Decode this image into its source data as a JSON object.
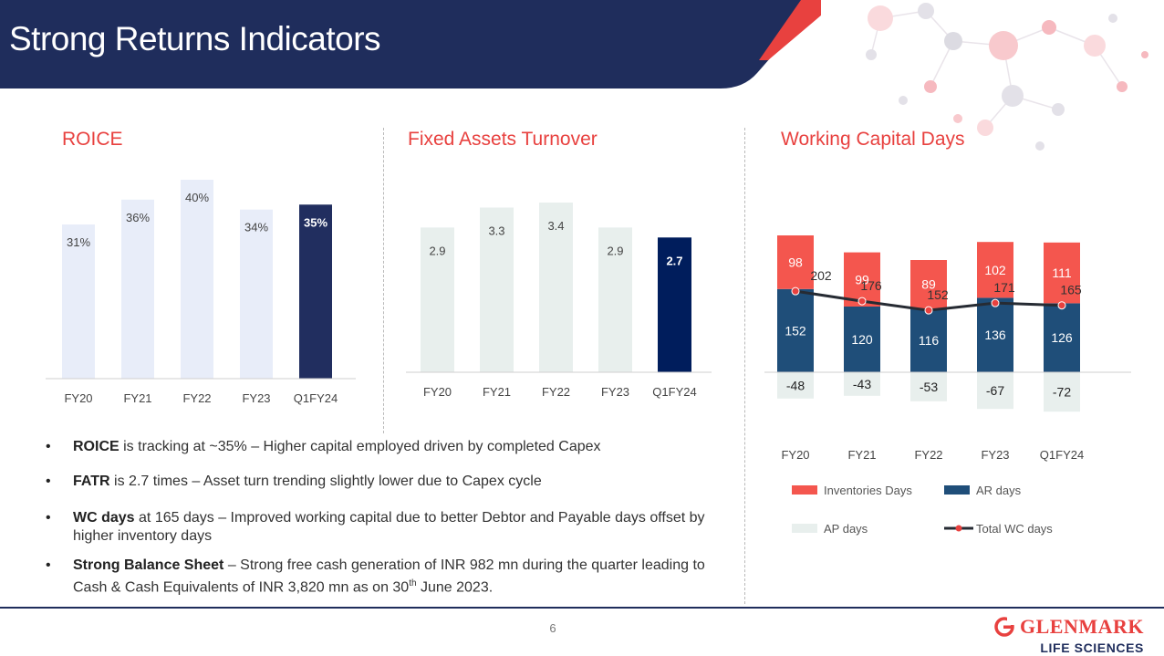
{
  "page": {
    "title": "Strong Returns Indicators",
    "page_number": "6",
    "brand_name": "GLENMARK",
    "brand_sub": "LIFE SCIENCES"
  },
  "colors": {
    "header": "#1f2d5c",
    "accent_red": "#e8413f",
    "light_bar_blue": "#e8edf9",
    "light_bar_grey": "#e8efed",
    "dark_navy": "#212e5f",
    "navy_fat": "#001d5c",
    "ar_blue": "#1f4e79",
    "inventory_red": "#f4564e",
    "ap_grey": "#e8efed"
  },
  "chart_data": [
    {
      "type": "bar",
      "title": "ROICE",
      "categories": [
        "FY20",
        "FY21",
        "FY22",
        "FY23",
        "Q1FY24"
      ],
      "values": [
        31,
        36,
        40,
        34,
        35
      ],
      "labels": [
        "31%",
        "36%",
        "40%",
        "34%",
        "35%"
      ],
      "ylim": [
        0,
        40
      ],
      "highlight_index": 4
    },
    {
      "type": "bar",
      "title": "Fixed Assets Turnover",
      "categories": [
        "FY20",
        "FY21",
        "FY22",
        "FY23",
        "Q1FY24"
      ],
      "values": [
        2.9,
        3.3,
        3.4,
        2.9,
        2.7
      ],
      "labels": [
        "2.9",
        "3.3",
        "3.4",
        "2.9",
        "2.7"
      ],
      "ylim": [
        0,
        3.4
      ],
      "highlight_index": 4
    },
    {
      "type": "bar",
      "title": "Working Capital Days",
      "categories": [
        "FY20",
        "FY21",
        "FY22",
        "FY23",
        "Q1FY24"
      ],
      "stacked": true,
      "series": [
        {
          "name": "AR days",
          "values": [
            152,
            120,
            116,
            136,
            126
          ],
          "labels": [
            "152",
            "120",
            "116",
            "136",
            "126"
          ],
          "color": "#1f4e79"
        },
        {
          "name": "Inventories Days",
          "values": [
            98,
            99,
            89,
            102,
            111
          ],
          "labels": [
            "98",
            "99",
            "89",
            "102",
            "111"
          ],
          "color": "#f4564e"
        },
        {
          "name": "AP days",
          "values": [
            -48,
            -43,
            -53,
            -67,
            -72
          ],
          "labels": [
            "-48",
            "-43",
            "-53",
            "-67",
            "-72"
          ],
          "color": "#e8efed"
        }
      ],
      "line": {
        "name": "Total WC days",
        "values": [
          202,
          176,
          152,
          171,
          165
        ],
        "labels": [
          "202",
          "176",
          "152",
          "171",
          "165"
        ],
        "color": "#262b33"
      },
      "legend": [
        {
          "name": "Inventories Days",
          "kind": "swatch",
          "color": "#f4564e"
        },
        {
          "name": "AR days",
          "kind": "swatch",
          "color": "#1f4e79"
        },
        {
          "name": "AP days",
          "kind": "swatch",
          "color": "#e8efed"
        },
        {
          "name": "Total WC days",
          "kind": "line",
          "color": "#262b33"
        }
      ],
      "legend_position": "bottom"
    }
  ],
  "bullets": [
    {
      "bold": "ROICE",
      "text": " is tracking at ~35% – Higher capital employed driven by completed Capex"
    },
    {
      "bold": "FATR",
      "text": " is 2.7 times – Asset turn trending slightly lower due to Capex cycle"
    },
    {
      "bold": "WC days",
      "text": " at 165 days – Improved working capital due to better Debtor and Payable days offset by higher inventory days"
    },
    {
      "bold": "Strong Balance Sheet",
      "text": " – Strong free cash generation of INR 982 mn during the quarter leading to Cash & Cash Equivalents of INR 3,820 mn as on 30",
      "sup": "th",
      "tail": " June 2023."
    }
  ]
}
